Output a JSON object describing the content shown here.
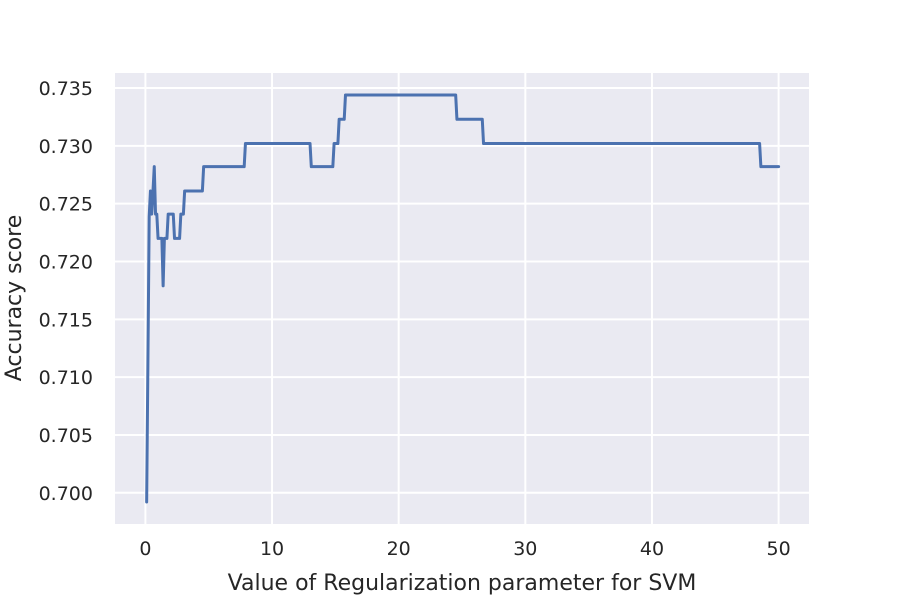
{
  "chart_data": {
    "type": "line",
    "title": "",
    "xlabel": "Value of Regularization parameter for SVM",
    "ylabel": "Accuracy score",
    "xlim": [
      -2.4,
      52.4
    ],
    "ylim": [
      0.6973,
      0.7363
    ],
    "xticks": [
      0,
      10,
      20,
      30,
      40,
      50
    ],
    "xtick_labels": [
      "0",
      "10",
      "20",
      "30",
      "40",
      "50"
    ],
    "yticks": [
      0.7,
      0.705,
      0.71,
      0.715,
      0.72,
      0.725,
      0.73,
      0.735
    ],
    "ytick_labels": [
      "0.700",
      "0.705",
      "0.710",
      "0.715",
      "0.720",
      "0.725",
      "0.730",
      "0.735"
    ],
    "grid": true,
    "background": "#eaeaf2",
    "grid_color": "#ffffff",
    "series": [
      {
        "color": "#4c72b0",
        "x": [
          0.1,
          0.3,
          0.4,
          0.5,
          0.6,
          0.7,
          0.8,
          0.9,
          1.0,
          1.1,
          1.2,
          1.3,
          1.4,
          1.5,
          1.6,
          1.7,
          1.8,
          1.9,
          2.0,
          2.1,
          2.2,
          2.3,
          2.4,
          2.5,
          2.6,
          2.7,
          2.8,
          2.9,
          3.0,
          3.1,
          3.2,
          3.3,
          3.4,
          4.5,
          4.6,
          7.8,
          7.9,
          13.0,
          13.1,
          14.8,
          14.9,
          15.2,
          15.3,
          15.7,
          15.8,
          24.5,
          24.6,
          26.6,
          26.7,
          48.5,
          48.6,
          50.0
        ],
        "y": [
          0.6992,
          0.7239,
          0.7261,
          0.7241,
          0.7261,
          0.7282,
          0.7241,
          0.7241,
          0.722,
          0.722,
          0.722,
          0.722,
          0.7179,
          0.722,
          0.722,
          0.722,
          0.7241,
          0.7241,
          0.7241,
          0.7241,
          0.7241,
          0.722,
          0.722,
          0.722,
          0.722,
          0.722,
          0.7241,
          0.7241,
          0.7241,
          0.7261,
          0.7261,
          0.7261,
          0.7261,
          0.7261,
          0.7282,
          0.7282,
          0.7302,
          0.7302,
          0.7282,
          0.7282,
          0.7302,
          0.7302,
          0.7323,
          0.7323,
          0.7344,
          0.7344,
          0.7323,
          0.7323,
          0.7302,
          0.7302,
          0.7282,
          0.7282
        ]
      }
    ]
  }
}
